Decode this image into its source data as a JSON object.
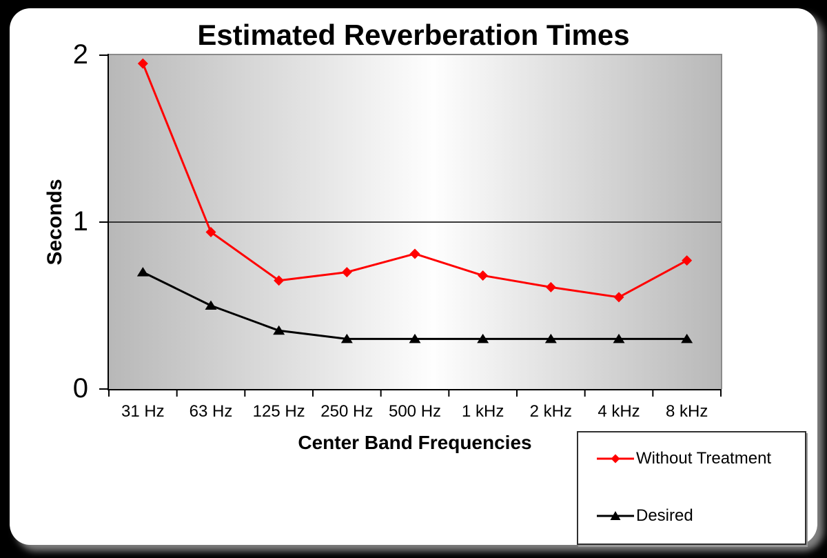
{
  "chart_data": {
    "type": "line",
    "title": "Estimated Reverberation Times",
    "xlabel": "Center Band Frequencies",
    "ylabel": "Seconds",
    "categories": [
      "31 Hz",
      "63 Hz",
      "125 Hz",
      "250 Hz",
      "500 Hz",
      "1 kHz",
      "2 kHz",
      "4 kHz",
      "8 kHz"
    ],
    "series": [
      {
        "name": "Without Treatment",
        "color": "#ff0000",
        "marker": "diamond",
        "values": [
          1.95,
          0.94,
          0.65,
          0.7,
          0.81,
          0.68,
          0.61,
          0.55,
          0.77
        ]
      },
      {
        "name": "Desired",
        "color": "#000000",
        "marker": "triangle",
        "values": [
          0.7,
          0.5,
          0.35,
          0.3,
          0.3,
          0.3,
          0.3,
          0.3,
          0.3
        ]
      }
    ],
    "ylim": [
      0,
      2
    ],
    "yticks": [
      0,
      1,
      2
    ],
    "grid_y": [
      1
    ],
    "legend_position": "bottom-right",
    "plot_background": {
      "style": "horizontal-gradient",
      "edge_color": "#b8b8b8",
      "center_color": "#fefefe"
    },
    "axis_color": "#000000",
    "plot_border_color": "#8a8a8a"
  }
}
